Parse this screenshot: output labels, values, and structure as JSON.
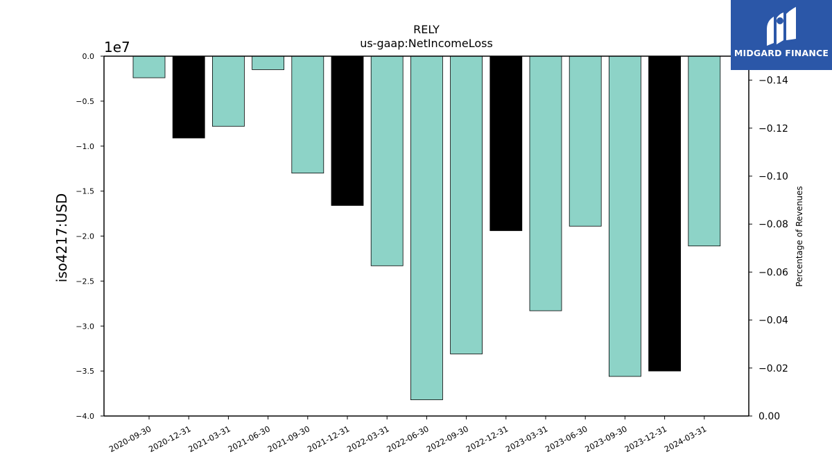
{
  "chart_data": {
    "type": "bar",
    "title": "RELY",
    "subtitle": "us-gaap:NetIncomeLoss",
    "ylabel": "iso4217:USD",
    "y_offset_label": "1e7",
    "y2label": "Percentage of Revenues",
    "ylim": [
      -4.0,
      0.0
    ],
    "y2lim": [
      0.0,
      -0.15
    ],
    "categories": [
      "2020-09-30",
      "2020-12-31",
      "2021-03-31",
      "2021-06-30",
      "2021-09-30",
      "2021-12-31",
      "2022-03-31",
      "2022-06-30",
      "2022-09-30",
      "2022-12-31",
      "2023-03-31",
      "2023-06-30",
      "2023-09-30",
      "2023-12-31",
      "2024-03-31"
    ],
    "values": [
      -2400000,
      -9100000,
      -7800000,
      -1500000,
      -13000000,
      -16600000,
      -23300000,
      -38200000,
      -33100000,
      -19400000,
      -28300000,
      -18900000,
      -35600000,
      -35000000,
      -21100000
    ],
    "bar_colors": [
      "#8dd3c7",
      "#000000",
      "#8dd3c7",
      "#8dd3c7",
      "#8dd3c7",
      "#000000",
      "#8dd3c7",
      "#8dd3c7",
      "#8dd3c7",
      "#000000",
      "#8dd3c7",
      "#8dd3c7",
      "#8dd3c7",
      "#000000",
      "#8dd3c7"
    ],
    "yticks": [
      "0.0",
      "−0.5",
      "−1.0",
      "−1.5",
      "−2.0",
      "−2.5",
      "−3.0",
      "−3.5",
      "−4.0"
    ],
    "y2ticks": [
      "0.00",
      "−0.02",
      "−0.04",
      "−0.06",
      "−0.08",
      "−0.10",
      "−0.12",
      "−0.14"
    ],
    "grid": false,
    "legend": "none"
  },
  "logo": {
    "text": "MIDGARD FINANCE",
    "color": "#2b57a8"
  }
}
